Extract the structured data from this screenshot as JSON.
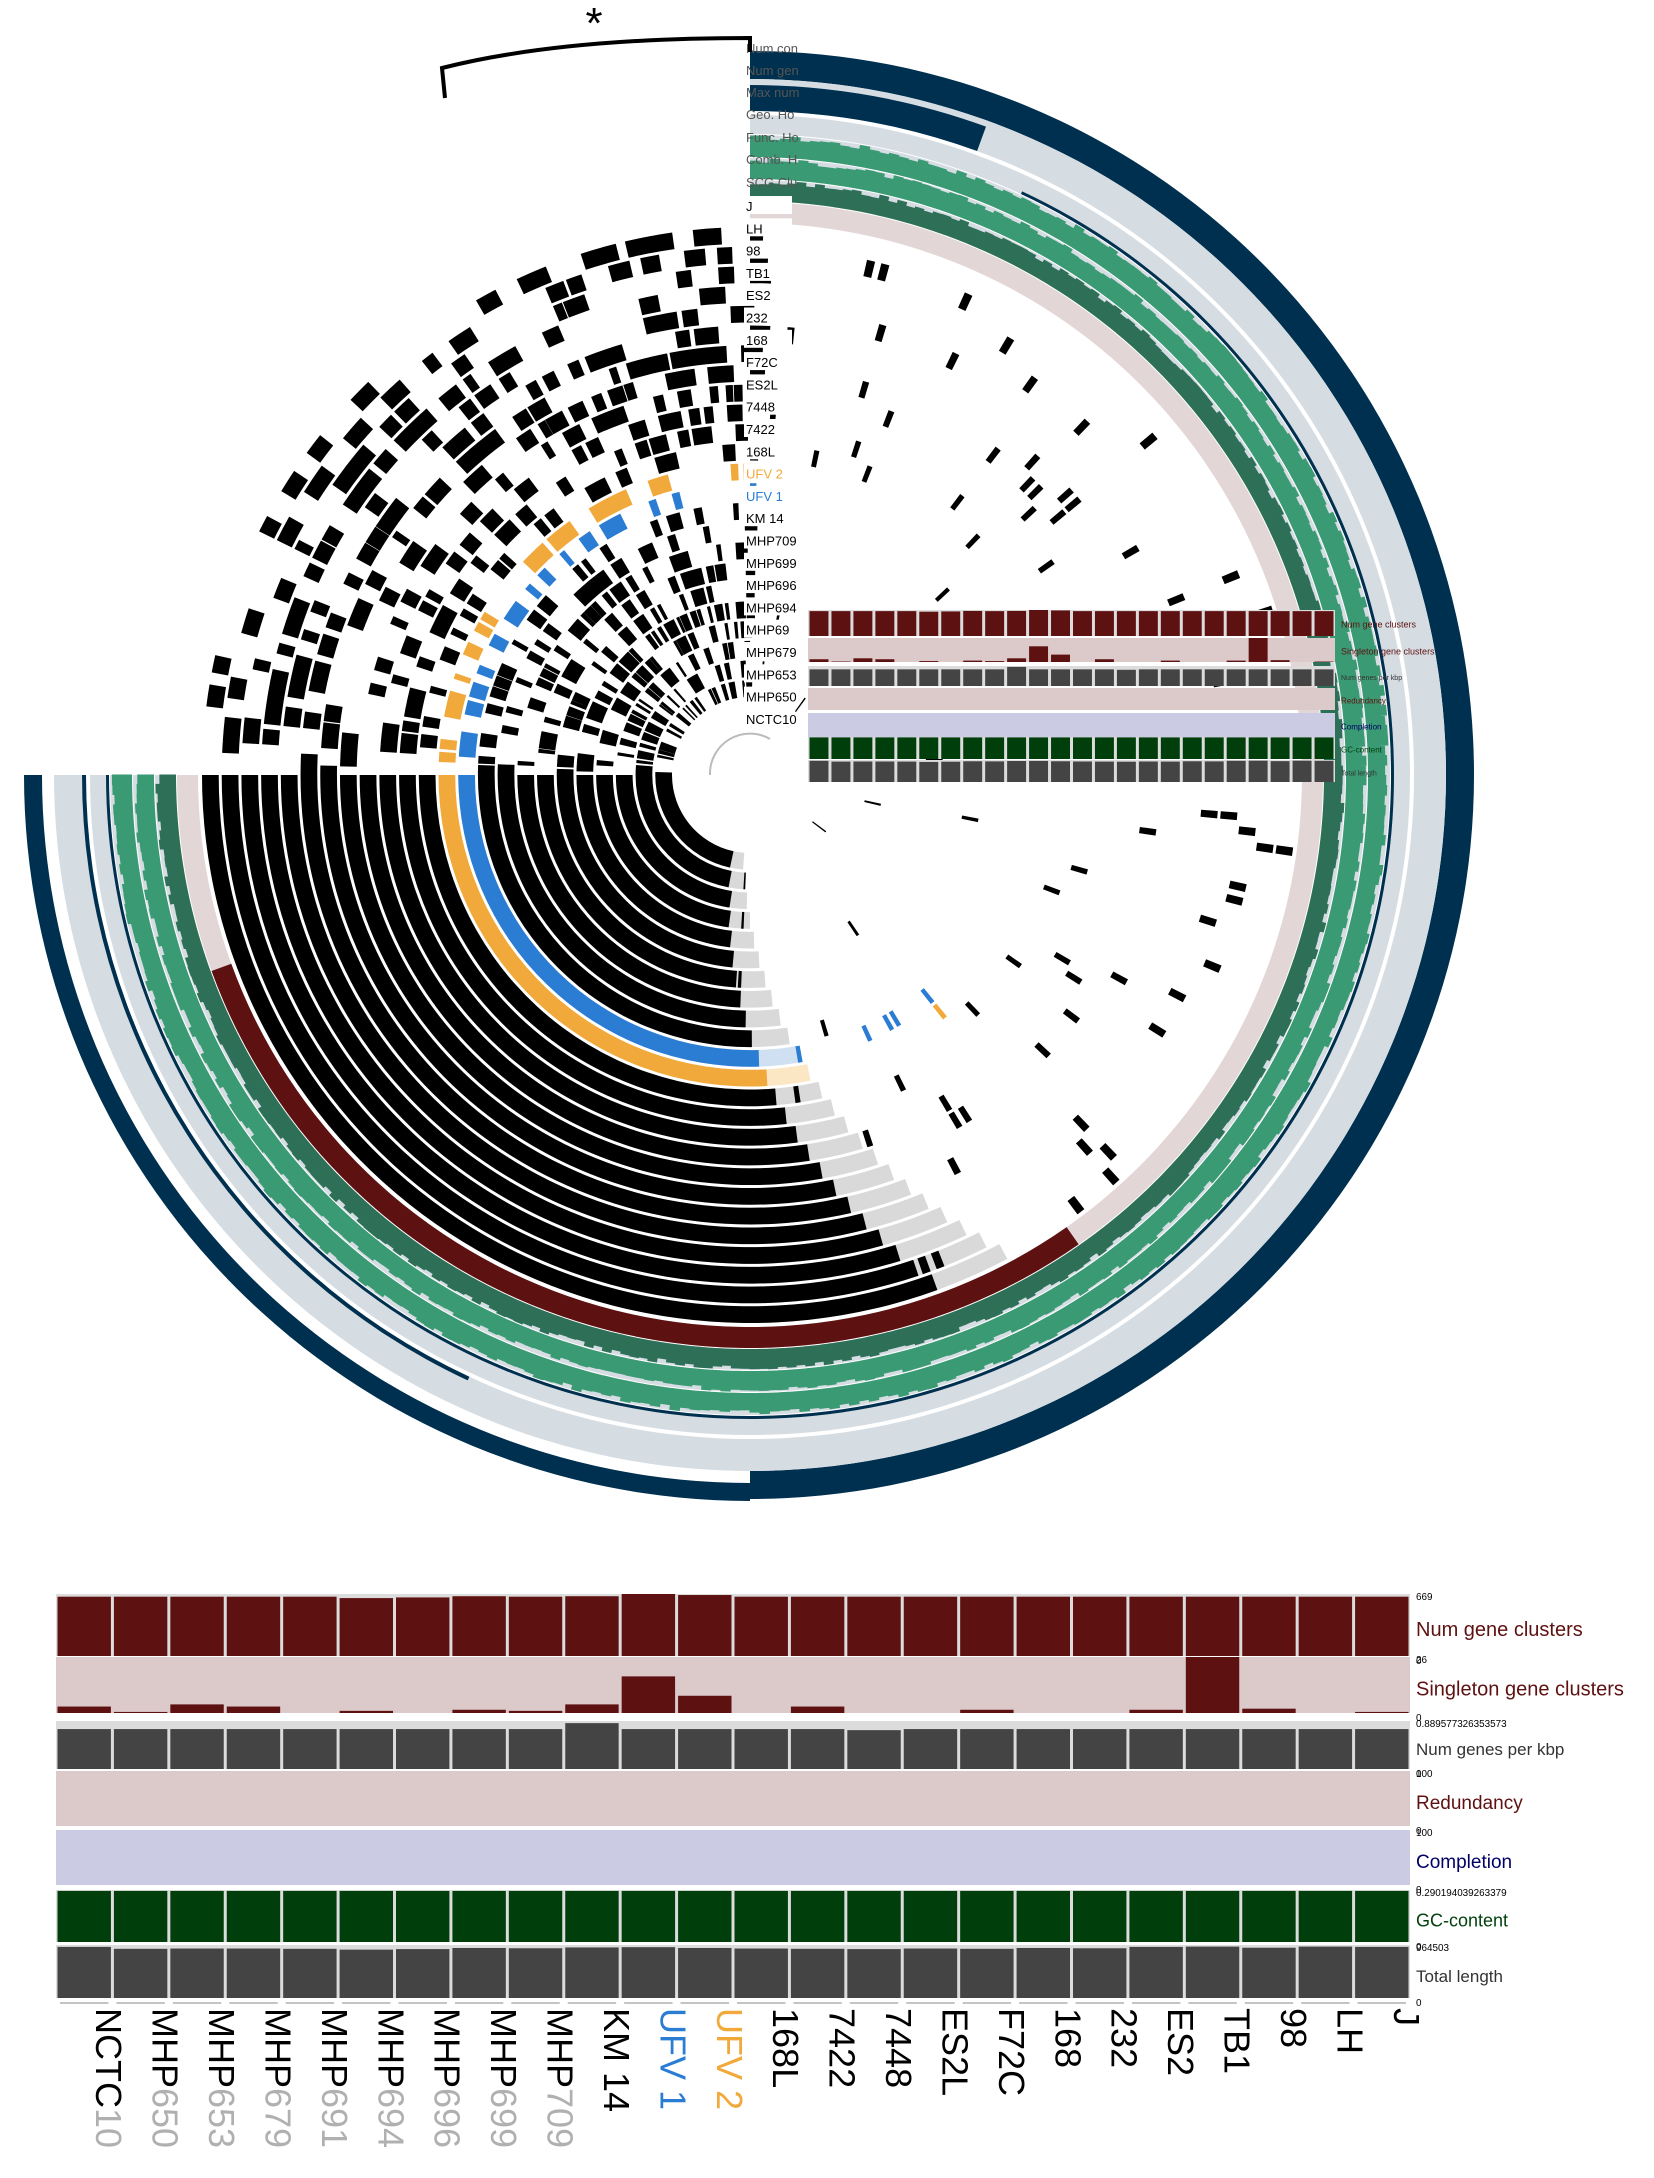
{
  "marker": "*",
  "colors": {
    "dark_navy": "#00304f",
    "light_gray_blue": "#d5dde3",
    "green1": "#3a9a73",
    "green2": "#2e6f57",
    "pink": "#e2d6d6",
    "maroon": "#5e1111",
    "black": "#000000",
    "absent_gray": "#d9d9d9",
    "ufv2": "#f2a93b",
    "ufv1": "#2b7cd3",
    "bar_maroon": "#5e1111",
    "bar_pink_bg": "#dccaca",
    "bar_dark_gray": "#444444",
    "redundancy_bg": "#dccaca",
    "completion_bg": "#cbcbe3",
    "gc_green": "#003f0c",
    "length_gray": "#444444"
  },
  "layer_labels": [
    "Num contributing genomes",
    "Num genes in gene cluster",
    "Max num paralogs",
    "Geo. Homogeneity",
    "Func. Homogeneity",
    "Comb. Homogeneity",
    "SCG Clusters"
  ],
  "layer_labels_visible": [
    "Num con",
    "Num gen",
    "Max num",
    "Geo. Ho",
    "Func. Ho",
    "Comb. H",
    "SCG Clu"
  ],
  "genomes_outer_to_inner": [
    "J",
    "LH",
    "98",
    "TB1",
    "ES2",
    "232",
    "168",
    "F72C",
    "ES2L",
    "7448",
    "7422",
    "168L",
    "UFV 2",
    "UFV 1",
    "KM 14",
    "MHP709",
    "MHP699",
    "MHP696",
    "MHP694",
    "MHP691",
    "MHP679",
    "MHP653",
    "MHP650",
    "NCTC10"
  ],
  "genomes_visible_labels": [
    "J",
    "LH",
    "98",
    "TB1",
    "ES2",
    "232",
    "168",
    "F72C",
    "ES2L",
    "7448",
    "7422",
    "168L",
    "UFV 2",
    "UFV 1",
    "KM 14",
    "MHP709",
    "MHP699",
    "MHP696",
    "MHP694",
    "MHP69",
    "MHP679",
    "MHP653",
    "MHP650",
    "NCTC10"
  ],
  "small_panel_labels": {
    "num_gene_clusters": "Num gene clusters",
    "singleton": "Singleton gene clusters",
    "genes_per_kbp": "Num genes per kbp",
    "redundancy": "Redundancy",
    "completion": "Completion",
    "gc": "GC-content",
    "total_length": "Total length"
  },
  "chart_data": {
    "type": "bar",
    "categories": [
      "NCTC10",
      "MHP650",
      "MHP653",
      "MHP679",
      "MHP691",
      "MHP694",
      "MHP696",
      "MHP699",
      "MHP709",
      "KM 14",
      "UFV 1",
      "UFV 2",
      "168L",
      "7422",
      "7448",
      "ES2L",
      "F72C",
      "168",
      "232",
      "ES2",
      "TB1",
      "98",
      "LH",
      "J"
    ],
    "category_label_colors": [
      "#b0b0b0",
      "#b0b0b0",
      "#b0b0b0",
      "#b0b0b0",
      "#b0b0b0",
      "#b0b0b0",
      "#b0b0b0",
      "#b0b0b0",
      "#b0b0b0",
      "#000000",
      "#2b7cd3",
      "#f2a93b",
      "#000000",
      "#000000",
      "#000000",
      "#000000",
      "#000000",
      "#000000",
      "#000000",
      "#000000",
      "#000000",
      "#000000",
      "#000000",
      "#000000"
    ],
    "category_label_text": [
      [
        "NCTC",
        "10"
      ],
      [
        "MHP",
        "650"
      ],
      [
        "MHP",
        "653"
      ],
      [
        "MHP",
        "679"
      ],
      [
        "MHP",
        "691"
      ],
      [
        "MHP",
        "694"
      ],
      [
        "MHP",
        "696"
      ],
      [
        "MHP",
        "699"
      ],
      [
        "MHP",
        "709"
      ],
      [
        "KM 14",
        ""
      ],
      [
        "UFV 1",
        ""
      ],
      [
        "UFV 2",
        ""
      ],
      [
        "168L",
        ""
      ],
      [
        "7422",
        ""
      ],
      [
        "7448",
        ""
      ],
      [
        "ES2L",
        ""
      ],
      [
        "F72C",
        ""
      ],
      [
        "168",
        ""
      ],
      [
        "232",
        ""
      ],
      [
        "ES2",
        ""
      ],
      [
        "TB1",
        ""
      ],
      [
        "98",
        ""
      ],
      [
        "LH",
        ""
      ],
      [
        "J",
        ""
      ]
    ],
    "series": [
      {
        "name": "Num gene clusters",
        "max_label": "669",
        "min_label": "0",
        "max": 669,
        "values": [
          640,
          640,
          640,
          640,
          640,
          625,
          632,
          645,
          640,
          645,
          669,
          658,
          640,
          640,
          640,
          640,
          640,
          640,
          640,
          640,
          640,
          640,
          640,
          640
        ]
      },
      {
        "name": "Singleton gene clusters",
        "max_label": "26",
        "min_label": "0",
        "max": 26,
        "values": [
          3,
          0.5,
          4,
          3,
          0,
          1,
          0,
          1.5,
          1,
          4,
          17,
          8,
          0,
          3,
          0,
          0,
          1.5,
          0,
          0,
          1.5,
          26,
          2,
          0,
          0.5
        ]
      },
      {
        "name": "Num genes per kbp",
        "max_label": "0.889577326353573",
        "min_label": "0",
        "max": 0.889577326353573,
        "values": [
          0.74,
          0.74,
          0.74,
          0.74,
          0.74,
          0.74,
          0.74,
          0.74,
          0.74,
          0.85,
          0.74,
          0.74,
          0.74,
          0.74,
          0.72,
          0.74,
          0.74,
          0.74,
          0.74,
          0.74,
          0.74,
          0.74,
          0.74,
          0.74
        ]
      },
      {
        "name": "Redundancy",
        "max_label": "100",
        "min_label": "0",
        "max": 100,
        "values": [
          0,
          0,
          0,
          0,
          0,
          0,
          0,
          0,
          0,
          0,
          0,
          0,
          0,
          0,
          0,
          0,
          0,
          0,
          0,
          0,
          0,
          0,
          0,
          0
        ]
      },
      {
        "name": "Completion",
        "max_label": "100",
        "min_label": "0",
        "max": 100,
        "values": [
          100,
          100,
          100,
          100,
          100,
          100,
          100,
          100,
          100,
          100,
          100,
          100,
          100,
          100,
          100,
          100,
          100,
          100,
          100,
          100,
          100,
          100,
          100,
          100
        ]
      },
      {
        "name": "GC-content",
        "max_label": "0.290194039263379",
        "min_label": "0",
        "max": 0.290194039263379,
        "values": [
          0.285,
          0.285,
          0.285,
          0.285,
          0.285,
          0.285,
          0.285,
          0.285,
          0.285,
          0.285,
          0.285,
          0.285,
          0.285,
          0.285,
          0.285,
          0.285,
          0.285,
          0.285,
          0.285,
          0.285,
          0.285,
          0.285,
          0.285,
          0.285
        ]
      },
      {
        "name": "Total length",
        "max_label": "964503",
        "min_label": "0",
        "max": 964503,
        "values": [
          930000,
          895000,
          900000,
          900000,
          895000,
          880000,
          890000,
          910000,
          905000,
          920000,
          925000,
          910000,
          900000,
          895000,
          890000,
          900000,
          895000,
          910000,
          905000,
          930000,
          935000,
          915000,
          935000,
          930000
        ]
      }
    ]
  }
}
